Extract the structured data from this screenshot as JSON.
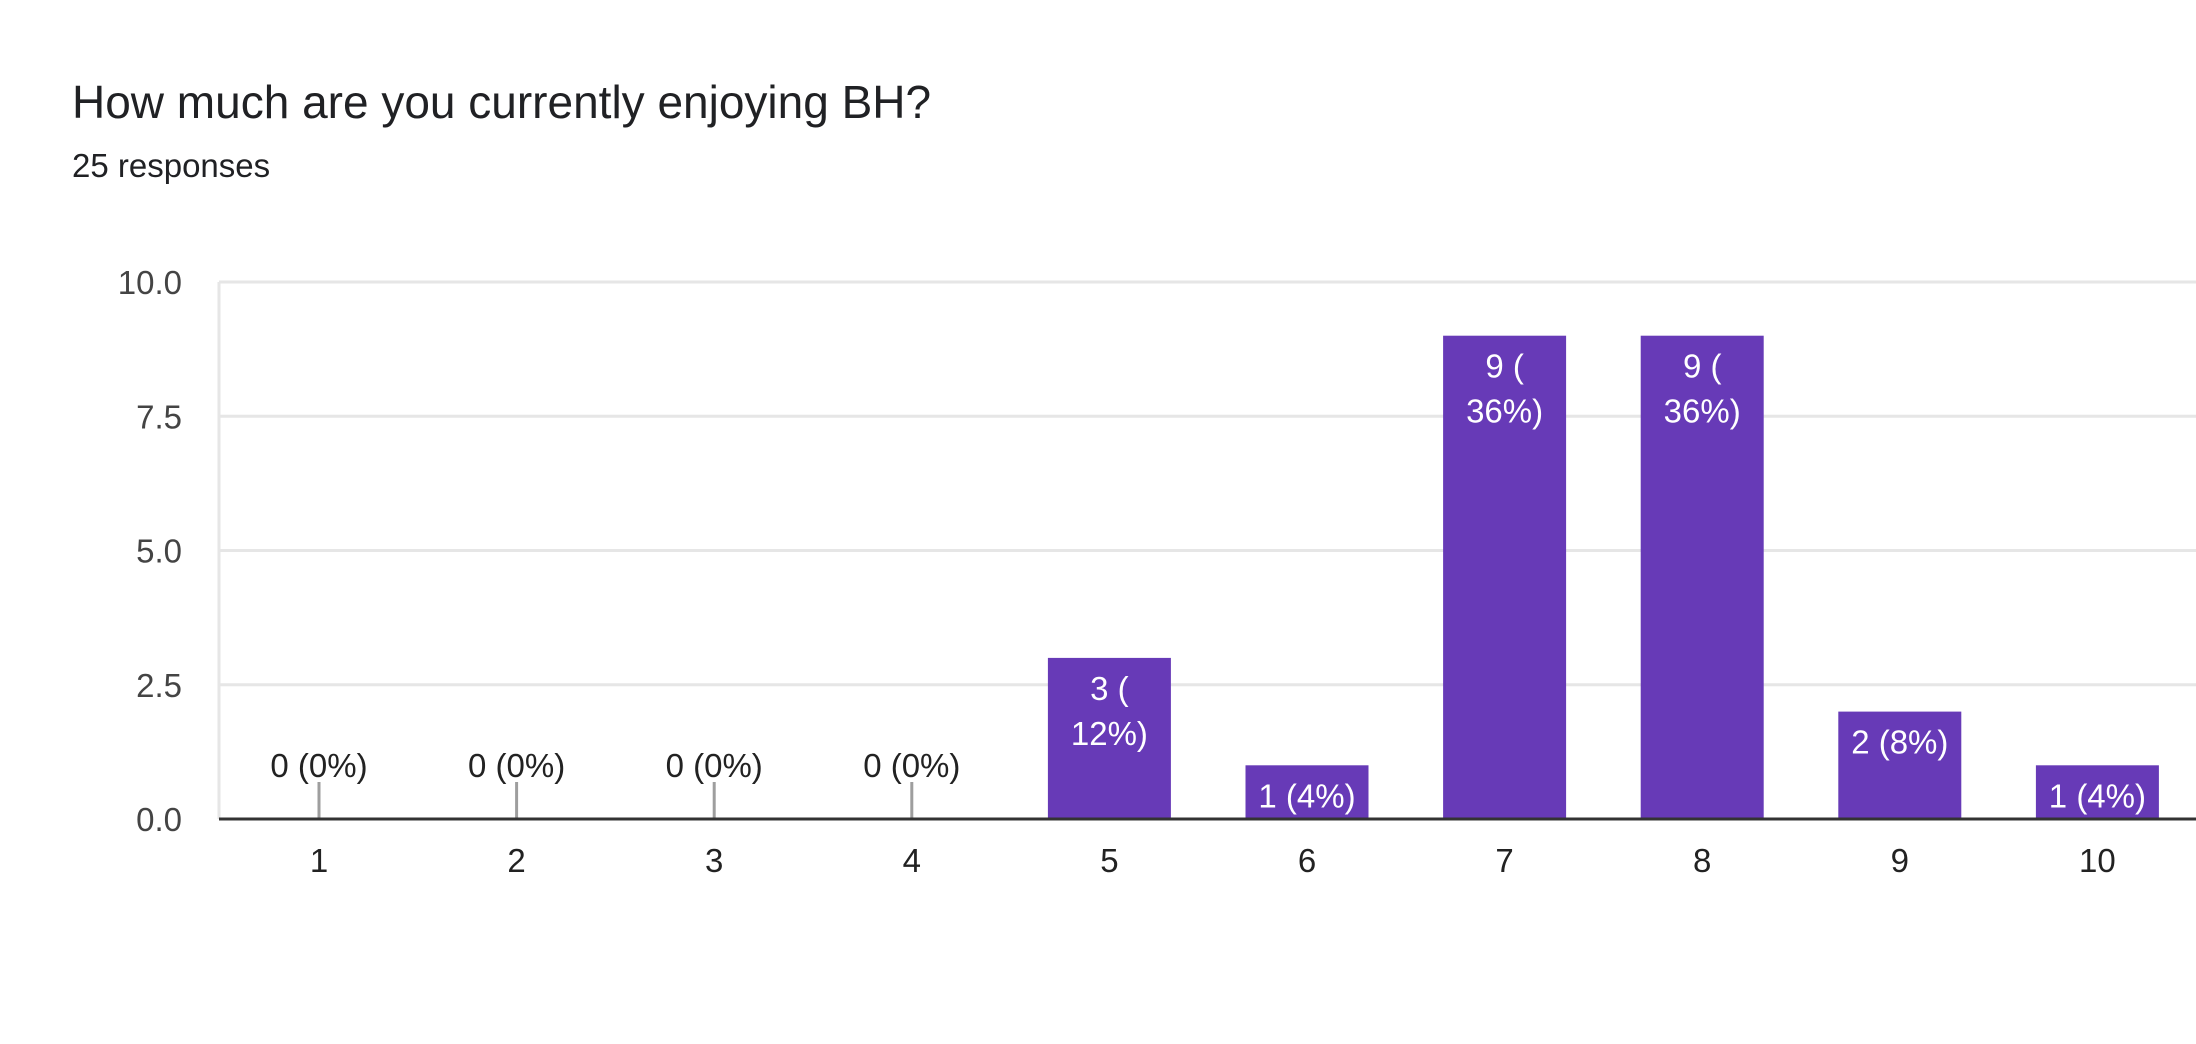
{
  "header": {
    "question": "How much are you currently enjoying BH?",
    "responses": "25 responses"
  },
  "colors": {
    "bar": "#673ab7",
    "grid": "#e6e6e6",
    "axis": "#333333",
    "zero_tick": "#9e9e9e"
  },
  "chart_data": {
    "type": "bar",
    "title": "How much are you currently enjoying BH?",
    "subtitle": "25 responses",
    "categories": [
      "1",
      "2",
      "3",
      "4",
      "5",
      "6",
      "7",
      "8",
      "9",
      "10"
    ],
    "values": [
      0,
      0,
      0,
      0,
      3,
      1,
      9,
      9,
      2,
      1
    ],
    "data_labels": [
      [
        "0 (0%)"
      ],
      [
        "0 (0%)"
      ],
      [
        "0 (0%)"
      ],
      [
        "0 (0%)"
      ],
      [
        "3 (",
        "12%)"
      ],
      [
        "1 (4%)"
      ],
      [
        "9 (",
        "36%)"
      ],
      [
        "9 (",
        "36%)"
      ],
      [
        "2 (8%)"
      ],
      [
        "1 (4%)"
      ]
    ],
    "yticks": [
      "0.0",
      "2.5",
      "5.0",
      "7.5",
      "10.0"
    ],
    "ylim": [
      0,
      10
    ],
    "grid": true,
    "legend": "none"
  }
}
